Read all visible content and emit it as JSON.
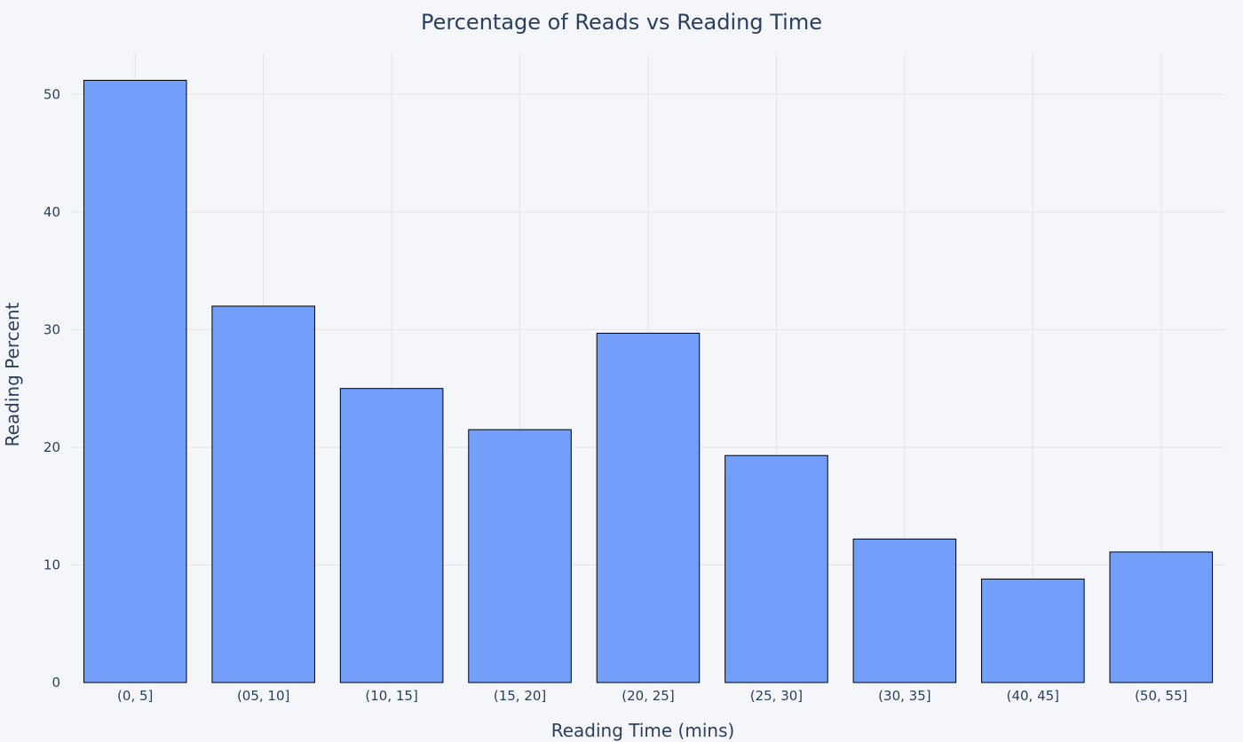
{
  "chart_data": {
    "type": "bar",
    "title": "Percentage of Reads vs Reading Time",
    "xlabel": "Reading Time (mins)",
    "ylabel": "Reading Percent",
    "categories": [
      "(0, 5]",
      "(05, 10]",
      "(10, 15]",
      "(15, 20]",
      "(20, 25]",
      "(25, 30]",
      "(30, 35]",
      "(40, 45]",
      "(50, 55]"
    ],
    "values": [
      51.2,
      32.0,
      25.0,
      21.5,
      29.7,
      19.3,
      12.2,
      8.8,
      11.1
    ],
    "ylim": [
      0,
      53.5
    ],
    "yticks": [
      0,
      10,
      20,
      30,
      40,
      50
    ],
    "grid": true,
    "bar_color": "#739FFB",
    "bar_edge_color": "#000000",
    "grid_color": "#E1E4EA",
    "background_color": "#F5F6FA",
    "text_color": "#2A3F5F"
  }
}
